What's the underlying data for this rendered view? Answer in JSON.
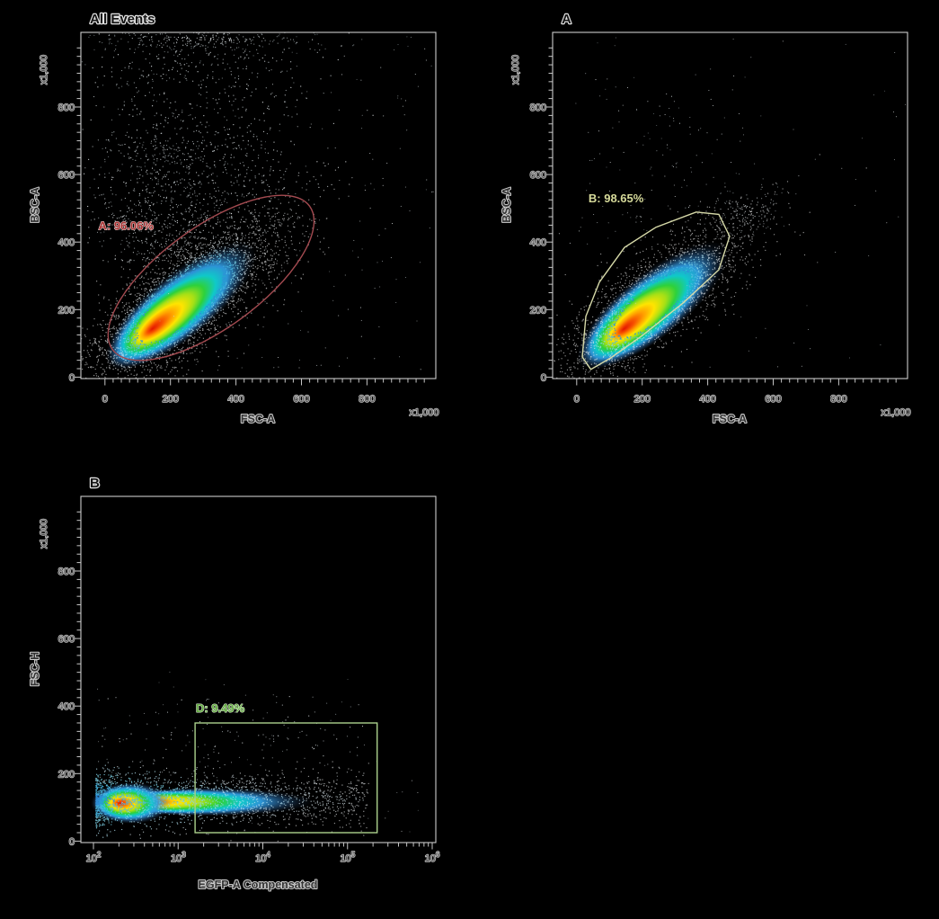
{
  "page": {
    "background": "#000000"
  },
  "palettes": {
    "fringe_blue_white": [
      "#2f8fd8",
      "#49b8e2",
      "#7fd6ea",
      "#b4e2f1",
      "#dcebf1",
      "#f4f7f8",
      "#ffffff"
    ],
    "speckle_white": [
      "#ffffff",
      "#e9eef1",
      "#d4dcdf",
      "#bfc9ce",
      "#a8b4ba"
    ]
  },
  "chart_data": {
    "type": "scatter",
    "subtype": "flow-cytometry-density-plots",
    "plots": [
      {
        "title": "All Events",
        "x_axis": {
          "label": "FSC-A",
          "scale": "linear",
          "range": [
            0,
            1000
          ],
          "major_ticks": [
            0,
            200,
            400,
            600,
            800
          ],
          "minor_tick_step": 25,
          "multiplier_label": "x1,000"
        },
        "y_axis": {
          "label": "BSC-A",
          "scale": "linear",
          "range": [
            0,
            1000
          ],
          "major_ticks": [
            0,
            200,
            400,
            600,
            800
          ],
          "minor_tick_step": 25,
          "multiplier_label": "x1,000"
        },
        "gate": {
          "name": "A",
          "percent": "96.06%",
          "label": "A: 96.06%",
          "shape": "ellipse",
          "center": [
            324,
            294
          ],
          "radii": [
            372,
            150
          ],
          "angle_deg": 36,
          "stroke_color": "#a34a50",
          "label_color": "#a83232",
          "label_halo": "#f0dcdc",
          "label_pos": [
            -20,
            436
          ]
        },
        "density_blobs": [
          {
            "cx": 230,
            "cy": 215,
            "rx": 285,
            "ry": 96,
            "angle_deg": 39,
            "gradient": "jetA"
          }
        ],
        "render_populations": [
          {
            "kind": "gauss",
            "n": 2400,
            "cx": 230,
            "cy": 215,
            "sx": 200,
            "sy": 72,
            "angle_deg": 39,
            "rmin": 0.8,
            "palette": "fringe_blue_white",
            "palette_r": [
              0.8,
              1.55
            ],
            "size": 1.35
          },
          {
            "kind": "spray",
            "n": 1100,
            "xc": 270,
            "xs": 190,
            "y": [
              340,
              1030
            ],
            "pow": 1,
            "palette": "speckle_white",
            "size": 1.3
          },
          {
            "kind": "spray",
            "n": 520,
            "xc": 210,
            "xs": 120,
            "y": [
              340,
              700
            ],
            "pow": 1,
            "palette": "speckle_white",
            "size": 1.2
          },
          {
            "kind": "gauss",
            "n": 220,
            "cx": 300,
            "cy": 1000,
            "sx": 180,
            "sy": 14,
            "angle_deg": 0,
            "rmin": 0,
            "palette": "speckle_white",
            "palette_r": [
              0,
              1.8
            ],
            "size": 1.2
          },
          {
            "kind": "uniform",
            "n": 260,
            "x": [
              10,
              1040
            ],
            "y": [
              20,
              1040
            ],
            "palette": "speckle_white",
            "size": 1.1
          }
        ]
      },
      {
        "title": "A",
        "x_axis": {
          "label": "FSC-A",
          "scale": "linear",
          "range": [
            0,
            1000
          ],
          "major_ticks": [
            0,
            200,
            400,
            600,
            800
          ],
          "minor_tick_step": 25,
          "multiplier_label": "x1,000"
        },
        "y_axis": {
          "label": "BSC-A",
          "scale": "linear",
          "range": [
            0,
            1000
          ],
          "major_ticks": [
            0,
            200,
            400,
            600,
            800
          ],
          "minor_tick_step": 25,
          "multiplier_label": "x1,000"
        },
        "gate": {
          "name": "B",
          "percent": "98.65%",
          "label": "B: 98.65%",
          "shape": "polygon",
          "points": [
            [
              17,
              60
            ],
            [
              28,
              180
            ],
            [
              69,
              281
            ],
            [
              146,
              384
            ],
            [
              242,
              444
            ],
            [
              365,
              489
            ],
            [
              434,
              482
            ],
            [
              467,
              417
            ],
            [
              434,
              318
            ],
            [
              324,
              219
            ],
            [
              200,
              123
            ],
            [
              104,
              57
            ],
            [
              43,
              23
            ]
          ],
          "stroke_color": "#d6d9a8",
          "label_color": "#d6da9a",
          "label_halo": "none",
          "label_pos": [
            36,
            518
          ]
        },
        "density_blobs": [
          {
            "cx": 230,
            "cy": 215,
            "rx": 285,
            "ry": 96,
            "angle_deg": 39,
            "gradient": "jetA"
          }
        ],
        "render_populations": [
          {
            "kind": "gauss",
            "n": 1900,
            "cx": 230,
            "cy": 215,
            "sx": 185,
            "sy": 62,
            "angle_deg": 39,
            "rmin": 0.75,
            "palette": "fringe_blue_white",
            "palette_r": [
              0.75,
              1.5
            ],
            "size": 1.35
          },
          {
            "kind": "gauss",
            "n": 130,
            "cx": 530,
            "cy": 490,
            "sx": 55,
            "sy": 40,
            "angle_deg": 20,
            "rmin": 0,
            "palette": "speckle_white",
            "palette_r": [
              0,
              1.6
            ],
            "size": 1.2
          },
          {
            "kind": "spray",
            "n": 150,
            "xc": 280,
            "xs": 160,
            "y": [
              380,
              900
            ],
            "pow": 1.3,
            "palette": "speckle_white",
            "size": 1.1
          },
          {
            "kind": "uniform",
            "n": 70,
            "x": [
              10,
              1040
            ],
            "y": [
              20,
              1040
            ],
            "palette": "speckle_white",
            "size": 1.0
          }
        ]
      },
      {
        "title": "B",
        "x_axis": {
          "label": "EGFP-A Compensated",
          "scale": "log",
          "range_log10": [
            2,
            6
          ],
          "major_ticks_log10": [
            2,
            3,
            4,
            5,
            6
          ]
        },
        "y_axis": {
          "label": "FSC-H",
          "scale": "linear",
          "range": [
            0,
            1000
          ],
          "major_ticks": [
            0,
            200,
            400,
            600,
            800
          ],
          "minor_tick_step": 25,
          "multiplier_label": "x1,000"
        },
        "gate": {
          "name": "D",
          "percent": "9.49%",
          "label": "D: 9.49%",
          "shape": "rectangle",
          "x_range_log10": [
            3.2,
            5.35
          ],
          "y_range": [
            25,
            350
          ],
          "stroke_color": "#abd18d",
          "label_color": "#67ad45",
          "label_halo": "#e4f2da",
          "label_pos": [
            3.21,
            382
          ]
        },
        "density_blobs": [
          {
            "cx": 3.35,
            "cy": 118,
            "rx": 1.25,
            "ry": 42,
            "angle_deg": 0,
            "gradient": "jetTail"
          },
          {
            "cx": 2.45,
            "cy": 115,
            "rx": 0.48,
            "ry": 62,
            "angle_deg": 0,
            "gradient": "jetCore"
          }
        ],
        "render_populations": [
          {
            "kind": "hband",
            "n": 2100,
            "lx": [
              2.03,
              5.25
            ],
            "pow": 2.0,
            "yc": 122,
            "ys": 40,
            "palette": "fringe_blue_white",
            "size": 1.35
          },
          {
            "kind": "spray_log",
            "n": 240,
            "lx": [
              2.05,
              5.2
            ],
            "y": [
              170,
              430
            ],
            "pow": 2.2,
            "palette": "speckle_white",
            "size": 1.2
          },
          {
            "kind": "spray_log",
            "n": 70,
            "lx": [
              2.0,
              5.9
            ],
            "y": [
              20,
              520
            ],
            "pow": 1,
            "palette": "speckle_white",
            "size": 1.0
          }
        ]
      }
    ]
  }
}
